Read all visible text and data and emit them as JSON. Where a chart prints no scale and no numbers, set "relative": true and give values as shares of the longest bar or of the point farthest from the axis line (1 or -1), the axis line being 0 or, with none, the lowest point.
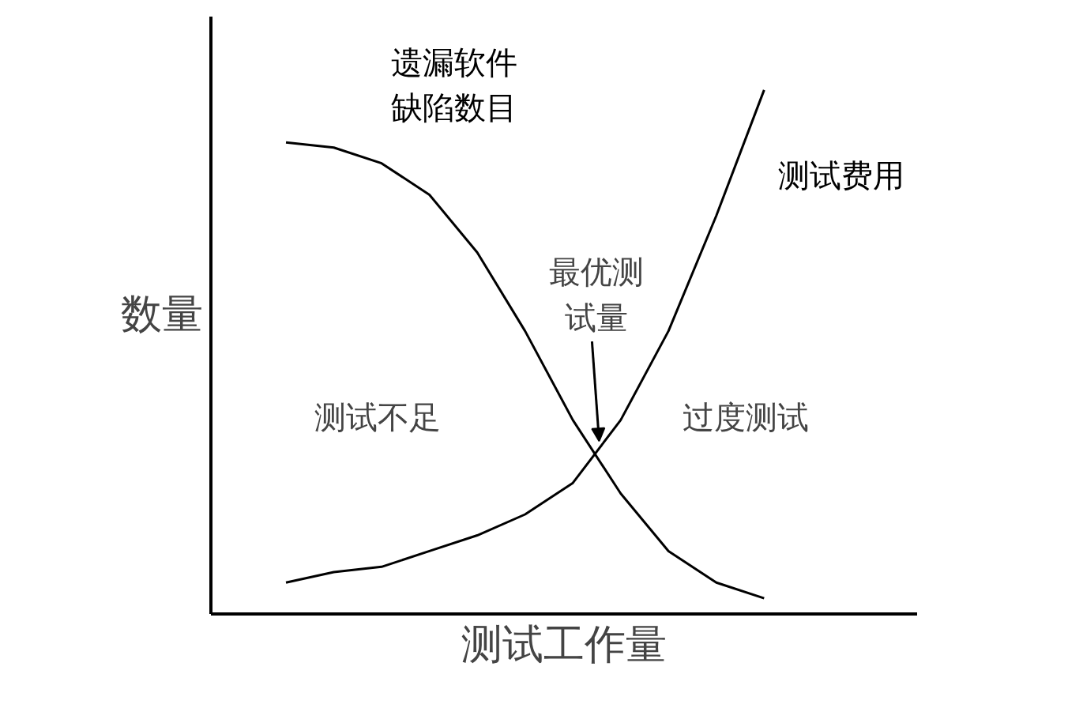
{
  "chart_data": {
    "type": "line",
    "relative": true,
    "xlabel": "测试工作量",
    "ylabel": "数量",
    "categories": [
      null,
      null,
      null,
      null,
      null,
      null,
      null,
      null,
      null,
      null,
      null,
      null
    ],
    "series": [
      {
        "name": "遗漏软件缺陷数目",
        "color": "#000000",
        "values": [
          0.9,
          0.89,
          0.86,
          0.8,
          0.69,
          0.54,
          0.37,
          0.23,
          0.12,
          0.06,
          0.03,
          null
        ]
      },
      {
        "name": "测试费用",
        "color": "#000000",
        "values": [
          0.06,
          0.08,
          0.09,
          0.12,
          0.15,
          0.19,
          0.25,
          0.37,
          0.54,
          0.76,
          1.0,
          null
        ]
      }
    ],
    "annotations": [
      "最优测试量",
      "测试不足",
      "过度测试"
    ],
    "legend": false,
    "marker": "none",
    "line_style": "solid"
  }
}
